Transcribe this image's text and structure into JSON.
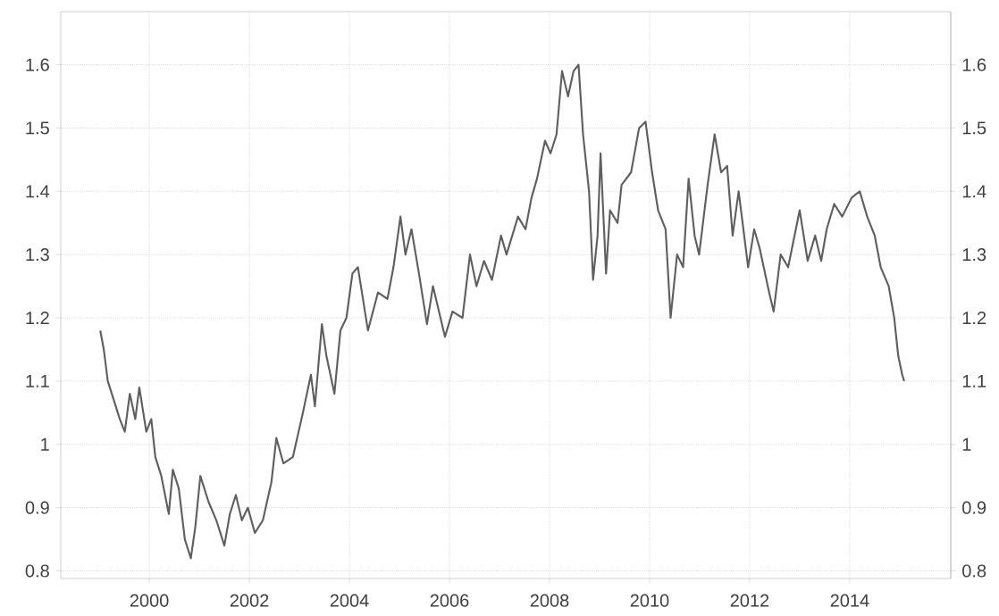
{
  "chart_data": {
    "type": "line",
    "color": "#5f5f5f",
    "grid": true,
    "xlim": [
      1998.23,
      2016.02
    ],
    "ylim": [
      0.788,
      1.684
    ],
    "xticks": [
      2000,
      2002,
      2004,
      2006,
      2008,
      2010,
      2012,
      2014
    ],
    "yticks": [
      0.8,
      0.9,
      1,
      1.1,
      1.2,
      1.3,
      1.4,
      1.5,
      1.6
    ],
    "y2lim": [
      0.788,
      1.684
    ],
    "y2ticks": [
      0.8,
      0.9,
      1,
      1.1,
      1.2,
      1.3,
      1.4,
      1.5,
      1.6
    ],
    "x": [
      1999.02,
      1999.09,
      1999.17,
      1999.29,
      1999.41,
      1999.51,
      1999.61,
      1999.72,
      1999.8,
      1999.94,
      2000.04,
      2000.12,
      2000.24,
      2000.39,
      2000.47,
      2000.59,
      2000.71,
      2000.83,
      2000.92,
      2001.02,
      2001.18,
      2001.34,
      2001.5,
      2001.61,
      2001.73,
      2001.85,
      2001.97,
      2002.11,
      2002.27,
      2002.44,
      2002.54,
      2002.68,
      2002.87,
      2003.07,
      2003.23,
      2003.31,
      2003.45,
      2003.54,
      2003.7,
      2003.82,
      2003.94,
      2004.06,
      2004.17,
      2004.37,
      2004.57,
      2004.76,
      2004.88,
      2005.02,
      2005.12,
      2005.24,
      2005.39,
      2005.55,
      2005.67,
      2005.91,
      2006.06,
      2006.26,
      2006.41,
      2006.54,
      2006.69,
      2006.85,
      2007.03,
      2007.14,
      2007.37,
      2007.52,
      2007.64,
      2007.75,
      2007.91,
      2008.02,
      2008.14,
      2008.25,
      2008.37,
      2008.48,
      2008.58,
      2008.67,
      2008.79,
      2008.87,
      2008.96,
      2009.02,
      2009.13,
      2009.21,
      2009.36,
      2009.44,
      2009.63,
      2009.79,
      2009.92,
      2010.05,
      2010.17,
      2010.32,
      2010.42,
      2010.55,
      2010.67,
      2010.78,
      2010.9,
      2010.99,
      2011.16,
      2011.3,
      2011.43,
      2011.55,
      2011.66,
      2011.78,
      2011.97,
      2012.09,
      2012.2,
      2012.39,
      2012.48,
      2012.62,
      2012.77,
      2013.0,
      2013.16,
      2013.31,
      2013.43,
      2013.54,
      2013.69,
      2013.85,
      2014.04,
      2014.2,
      2014.35,
      2014.5,
      2014.62,
      2014.78,
      2014.89,
      2014.97,
      2015.05,
      2015.09
    ],
    "values": [
      1.18,
      1.15,
      1.1,
      1.07,
      1.04,
      1.02,
      1.08,
      1.04,
      1.09,
      1.02,
      1.04,
      0.98,
      0.95,
      0.89,
      0.96,
      0.93,
      0.85,
      0.82,
      0.87,
      0.95,
      0.91,
      0.88,
      0.84,
      0.89,
      0.92,
      0.88,
      0.9,
      0.86,
      0.88,
      0.94,
      1.01,
      0.97,
      0.98,
      1.05,
      1.11,
      1.06,
      1.19,
      1.14,
      1.08,
      1.18,
      1.2,
      1.27,
      1.28,
      1.18,
      1.24,
      1.23,
      1.28,
      1.36,
      1.3,
      1.34,
      1.27,
      1.19,
      1.25,
      1.17,
      1.21,
      1.2,
      1.3,
      1.25,
      1.29,
      1.26,
      1.33,
      1.3,
      1.36,
      1.34,
      1.39,
      1.42,
      1.48,
      1.46,
      1.49,
      1.59,
      1.55,
      1.59,
      1.6,
      1.49,
      1.4,
      1.26,
      1.33,
      1.46,
      1.27,
      1.37,
      1.35,
      1.41,
      1.43,
      1.5,
      1.51,
      1.43,
      1.37,
      1.34,
      1.2,
      1.3,
      1.28,
      1.42,
      1.33,
      1.3,
      1.41,
      1.49,
      1.43,
      1.44,
      1.33,
      1.4,
      1.28,
      1.34,
      1.31,
      1.24,
      1.21,
      1.3,
      1.28,
      1.37,
      1.29,
      1.33,
      1.29,
      1.34,
      1.38,
      1.36,
      1.39,
      1.4,
      1.36,
      1.33,
      1.28,
      1.25,
      1.2,
      1.14,
      1.11,
      1.1
    ]
  }
}
